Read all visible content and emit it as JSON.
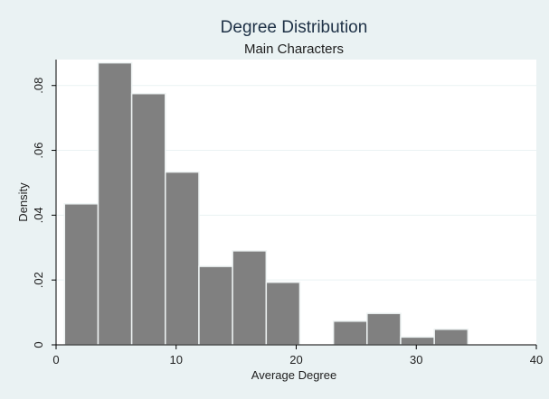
{
  "chart_data": {
    "type": "bar",
    "title": "Degree Distribution",
    "subtitle": "Main Characters",
    "xlabel": "Average Degree",
    "ylabel": "Density",
    "xlim": [
      0,
      40
    ],
    "ylim": [
      0,
      0.088
    ],
    "x_ticks": [
      0,
      10,
      20,
      30,
      40
    ],
    "x_tick_labels": [
      "0",
      "10",
      "20",
      "30",
      "40"
    ],
    "y_ticks": [
      0,
      0.02,
      0.04,
      0.06,
      0.08
    ],
    "y_tick_labels": [
      "0",
      ".02",
      ".04",
      ".06",
      ".08"
    ],
    "grid": true,
    "legend": "none",
    "bar_color": "#808080",
    "bar_outline_color": "#eef3f3",
    "bins": [
      {
        "x0": 0.7,
        "x1": 3.5,
        "value": 0.0435
      },
      {
        "x0": 3.5,
        "x1": 6.3,
        "value": 0.087
      },
      {
        "x0": 6.3,
        "x1": 9.1,
        "value": 0.0775
      },
      {
        "x0": 9.1,
        "x1": 11.9,
        "value": 0.0533
      },
      {
        "x0": 11.9,
        "x1": 14.7,
        "value": 0.0242
      },
      {
        "x0": 14.7,
        "x1": 17.5,
        "value": 0.029
      },
      {
        "x0": 17.5,
        "x1": 20.3,
        "value": 0.0193
      },
      {
        "x0": 20.3,
        "x1": 23.1,
        "value": 0
      },
      {
        "x0": 23.1,
        "x1": 25.9,
        "value": 0.0073
      },
      {
        "x0": 25.9,
        "x1": 28.7,
        "value": 0.0097
      },
      {
        "x0": 28.7,
        "x1": 31.5,
        "value": 0.0024
      },
      {
        "x0": 31.5,
        "x1": 34.3,
        "value": 0.0048
      }
    ]
  }
}
